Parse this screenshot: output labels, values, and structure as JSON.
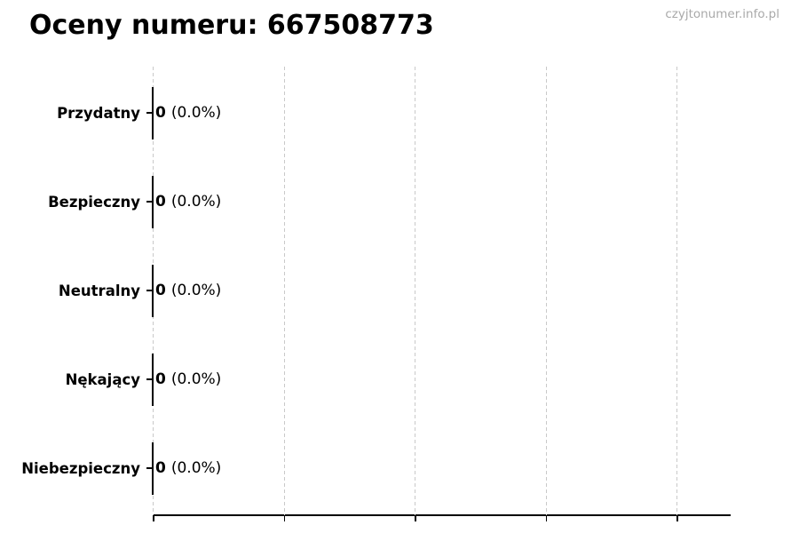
{
  "page": {
    "watermark": "czyjtonumer.info.pl"
  },
  "colors": {
    "text": "#000000",
    "watermark": "#a9a9a9",
    "gridline": "#c9c9c9",
    "axis": "#000000",
    "background": "#ffffff"
  },
  "chart_data": {
    "type": "bar",
    "orientation": "horizontal",
    "title": "Oceny numeru: 667508773",
    "categories": [
      "Przydatny",
      "Bezpieczny",
      "Neutralny",
      "Nękający",
      "Niebezpieczny"
    ],
    "values": [
      0,
      0,
      0,
      0,
      0
    ],
    "rows": [
      {
        "label": "Przydatny",
        "count": "0",
        "percent": "(0.0%)"
      },
      {
        "label": "Bezpieczny",
        "count": "0",
        "percent": "(0.0%)"
      },
      {
        "label": "Neutralny",
        "count": "0",
        "percent": "(0.0%)"
      },
      {
        "label": "Nękający",
        "count": "0",
        "percent": "(0.0%)"
      },
      {
        "label": "Niebezpieczny",
        "count": "0",
        "percent": "(0.0%)"
      }
    ],
    "xlabel": "",
    "ylabel": "",
    "x_axis": {
      "tick_count": 5,
      "tick_labels": [],
      "gridlines": "dashed"
    },
    "legend": "none"
  }
}
